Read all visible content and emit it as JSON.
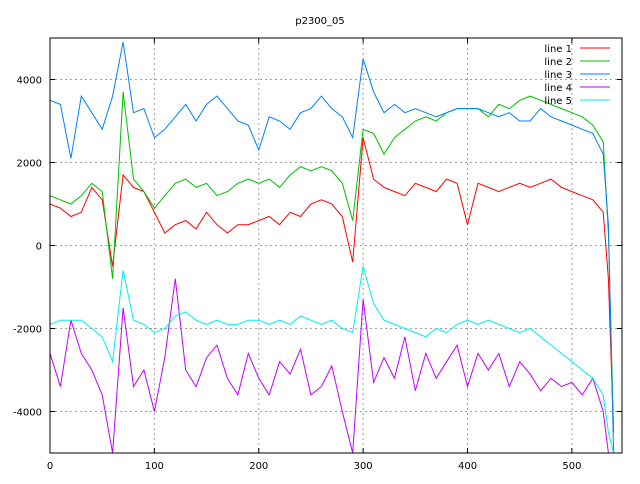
{
  "chart_data": {
    "type": "line",
    "title": "p2300_05",
    "xlabel": "",
    "ylabel": "",
    "xlim": [
      0,
      548
    ],
    "ylim": [
      -5000,
      5000
    ],
    "xticks": [
      0,
      100,
      200,
      300,
      400,
      500
    ],
    "yticks": [
      4000,
      2000,
      0,
      -2000,
      -4000
    ],
    "grid": true,
    "legend_position": "top-right",
    "x": [
      0,
      10,
      20,
      30,
      40,
      50,
      60,
      70,
      80,
      90,
      100,
      110,
      120,
      130,
      140,
      150,
      160,
      170,
      180,
      190,
      200,
      210,
      220,
      230,
      240,
      250,
      260,
      270,
      280,
      290,
      300,
      310,
      320,
      330,
      340,
      350,
      360,
      370,
      380,
      390,
      400,
      410,
      420,
      430,
      440,
      450,
      460,
      470,
      480,
      490,
      500,
      510,
      520,
      530,
      535,
      540
    ],
    "series": [
      {
        "name": "line 1",
        "color": "#ff0000",
        "values": [
          1000,
          900,
          700,
          800,
          1400,
          1100,
          -500,
          1700,
          1400,
          1300,
          800,
          300,
          500,
          600,
          400,
          800,
          500,
          300,
          500,
          500,
          600,
          700,
          500,
          800,
          700,
          1000,
          1100,
          1000,
          700,
          -400,
          2600,
          1600,
          1400,
          1300,
          1200,
          1500,
          1400,
          1300,
          1600,
          1500,
          500,
          1500,
          1400,
          1300,
          1400,
          1500,
          1400,
          1500,
          1600,
          1400,
          1300,
          1200,
          1100,
          800,
          -800,
          -4500
        ]
      },
      {
        "name": "line 2",
        "color": "#00c000",
        "values": [
          1200,
          1100,
          1000,
          1200,
          1500,
          1300,
          -800,
          3700,
          1600,
          1300,
          900,
          1200,
          1500,
          1600,
          1400,
          1500,
          1200,
          1300,
          1500,
          1600,
          1500,
          1600,
          1400,
          1700,
          1900,
          1800,
          1900,
          1800,
          1500,
          600,
          2800,
          2700,
          2200,
          2600,
          2800,
          3000,
          3100,
          3000,
          3200,
          3300,
          3300,
          3300,
          3100,
          3400,
          3300,
          3500,
          3600,
          3500,
          3400,
          3300,
          3200,
          3100,
          2900,
          2500,
          300,
          -4500
        ]
      },
      {
        "name": "line 3",
        "color": "#0080ff",
        "values": [
          3500,
          3400,
          2100,
          3600,
          3200,
          2800,
          3600,
          4900,
          3200,
          3300,
          2600,
          2800,
          3100,
          3400,
          3000,
          3400,
          3600,
          3300,
          3000,
          2900,
          2300,
          3100,
          3000,
          2800,
          3200,
          3300,
          3600,
          3300,
          3100,
          2600,
          4500,
          3700,
          3200,
          3400,
          3200,
          3300,
          3200,
          3100,
          3200,
          3300,
          3300,
          3300,
          3200,
          3100,
          3200,
          3000,
          3000,
          3300,
          3100,
          3000,
          2900,
          2800,
          2700,
          2200,
          500,
          -5000
        ]
      },
      {
        "name": "line 4",
        "color": "#c000ff",
        "values": [
          -2600,
          -3400,
          -1800,
          -2600,
          -3000,
          -3600,
          -5000,
          -1500,
          -3400,
          -3000,
          -4000,
          -2700,
          -800,
          -3000,
          -3400,
          -2700,
          -2400,
          -3200,
          -3600,
          -2600,
          -3200,
          -3600,
          -2800,
          -3100,
          -2500,
          -3600,
          -3400,
          -2900,
          -4000,
          -5000,
          -1300,
          -3300,
          -2700,
          -3200,
          -2200,
          -3500,
          -2600,
          -3200,
          -2800,
          -2400,
          -3400,
          -2600,
          -3000,
          -2600,
          -3400,
          -2800,
          -3100,
          -3500,
          -3200,
          -3400,
          -3300,
          -3600,
          -3200,
          -4000,
          -5000,
          -5000
        ]
      },
      {
        "name": "line 5",
        "color": "#00eeee",
        "values": [
          -1900,
          -1800,
          -1800,
          -1800,
          -2000,
          -2200,
          -2800,
          -600,
          -1800,
          -1900,
          -2100,
          -2000,
          -1700,
          -1600,
          -1800,
          -1900,
          -1800,
          -1900,
          -1900,
          -1800,
          -1800,
          -1900,
          -1800,
          -1900,
          -1700,
          -1800,
          -1900,
          -1800,
          -2000,
          -2100,
          -500,
          -1400,
          -1800,
          -1900,
          -2000,
          -2100,
          -2200,
          -2000,
          -2100,
          -1900,
          -1800,
          -1900,
          -1800,
          -1900,
          -2000,
          -2100,
          -2000,
          -2200,
          -2400,
          -2600,
          -2800,
          -3000,
          -3200,
          -3600,
          -4500,
          -5000
        ]
      }
    ]
  }
}
